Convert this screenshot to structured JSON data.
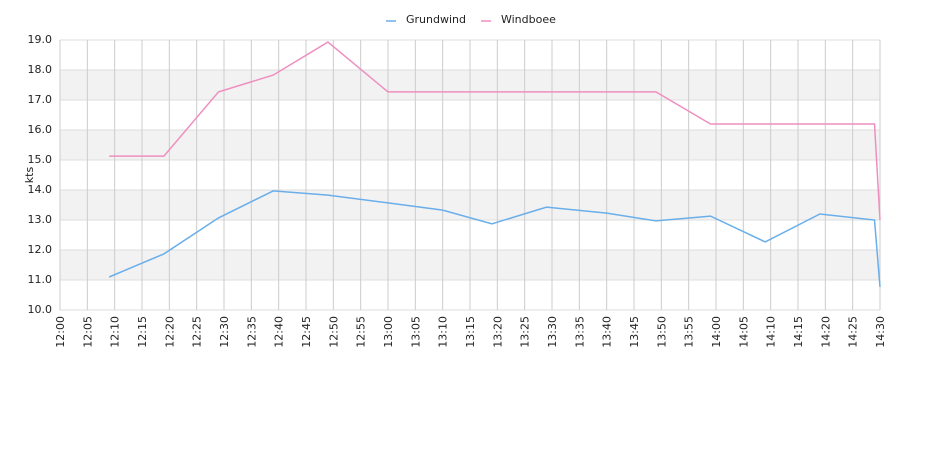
{
  "chart_data": {
    "type": "line",
    "y_label": "kts",
    "x": [
      "12:09",
      "12:19",
      "12:29",
      "12:39",
      "12:49",
      "13:00",
      "13:10",
      "13:19",
      "13:29",
      "13:40",
      "13:49",
      "13:59",
      "14:09",
      "14:19",
      "14:29",
      "14:30"
    ],
    "series": [
      {
        "name": "Grundwind",
        "color": "#6aaeea",
        "values": [
          11.1,
          11.87,
          13.07,
          13.97,
          13.83,
          13.57,
          13.33,
          12.87,
          13.43,
          13.23,
          12.97,
          13.13,
          12.27,
          13.2,
          13.0,
          10.77
        ]
      },
      {
        "name": "Windboee",
        "color": "#ee8fc0",
        "values": [
          15.13,
          15.13,
          17.27,
          17.83,
          18.93,
          17.27,
          17.27,
          17.27,
          17.27,
          17.27,
          17.27,
          16.2,
          16.2,
          16.2,
          16.2,
          13.0
        ]
      }
    ],
    "xlim": [
      "12:00",
      "14:30"
    ],
    "xticks": [
      "12:00",
      "12:05",
      "12:10",
      "12:15",
      "12:20",
      "12:25",
      "12:30",
      "12:35",
      "12:40",
      "12:45",
      "12:50",
      "12:55",
      "13:00",
      "13:05",
      "13:10",
      "13:15",
      "13:20",
      "13:25",
      "13:30",
      "13:35",
      "13:40",
      "13:45",
      "13:50",
      "13:55",
      "14:00",
      "14:05",
      "14:10",
      "14:15",
      "14:20",
      "14:25",
      "14:30"
    ],
    "ylim": [
      10,
      19
    ],
    "yticks": [
      {
        "value": 10,
        "label": "10.0"
      },
      {
        "value": 11,
        "label": "11.0"
      },
      {
        "value": 12,
        "label": "12.0"
      },
      {
        "value": 13,
        "label": "13.0"
      },
      {
        "value": 14,
        "label": "14.0"
      },
      {
        "value": 15,
        "label": "15.0"
      },
      {
        "value": 16,
        "label": "16.0"
      },
      {
        "value": 17,
        "label": "17.0"
      },
      {
        "value": 18,
        "label": "18.0"
      },
      {
        "value": 19,
        "label": "19.0"
      }
    ],
    "grid": true,
    "legend": "top"
  }
}
